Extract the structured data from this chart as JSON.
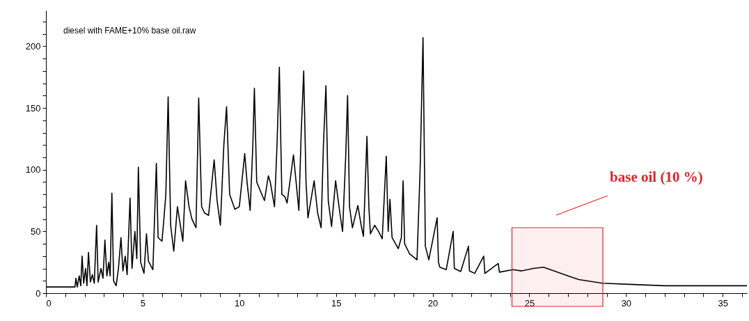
{
  "chart_data": {
    "type": "line",
    "title": "diesel with FAME+10% base oil.raw",
    "bands": [
      {
        "axis": "x",
        "from": 24.1,
        "to": 28.8,
        "label": "base oil (10 %)",
        "color": "#e8202a"
      }
    ],
    "xlim": [
      0,
      36.25
    ],
    "ylim": [
      0,
      229
    ],
    "xticks": [
      0,
      {
        "value": 1,
        "label": null
      },
      {
        "value": 2,
        "label": null
      },
      {
        "value": 3,
        "label": null
      },
      {
        "value": 4,
        "label": null
      },
      5,
      {
        "value": 6,
        "label": null
      },
      {
        "value": 7,
        "label": null
      },
      {
        "value": 8,
        "label": null
      },
      {
        "value": 9,
        "label": null
      },
      10,
      {
        "value": 11,
        "label": null
      },
      {
        "value": 12,
        "label": null
      },
      {
        "value": 13,
        "label": null
      },
      {
        "value": 14,
        "label": null
      },
      15,
      {
        "value": 16,
        "label": null
      },
      {
        "value": 17,
        "label": null
      },
      {
        "value": 18,
        "label": null
      },
      {
        "value": 19,
        "label": null
      },
      20,
      {
        "value": 21,
        "label": null
      },
      {
        "value": 22,
        "label": null
      },
      {
        "value": 23,
        "label": null
      },
      {
        "value": 24,
        "label": null
      },
      25,
      {
        "value": 26,
        "label": null
      },
      {
        "value": 27,
        "label": null
      },
      {
        "value": 28,
        "label": null
      },
      {
        "value": 29,
        "label": null
      },
      30,
      {
        "value": 31,
        "label": null
      },
      {
        "value": 32,
        "label": null
      },
      {
        "value": 33,
        "label": null
      },
      {
        "value": 34,
        "label": null
      },
      35,
      {
        "value": 36,
        "label": null
      }
    ],
    "yticks": [
      0,
      {
        "value": 10,
        "label": null
      },
      {
        "value": 20,
        "label": null
      },
      {
        "value": 30,
        "label": null
      },
      {
        "value": 40,
        "label": null
      },
      50,
      {
        "value": 60,
        "label": null
      },
      {
        "value": 70,
        "label": null
      },
      {
        "value": 80,
        "label": null
      },
      {
        "value": 90,
        "label": null
      },
      100,
      {
        "value": 110,
        "label": null
      },
      {
        "value": 120,
        "label": null
      },
      {
        "value": 130,
        "label": null
      },
      {
        "value": 140,
        "label": null
      },
      150,
      {
        "value": 160,
        "label": null
      },
      {
        "value": 170,
        "label": null
      },
      {
        "value": 180,
        "label": null
      },
      {
        "value": 190,
        "label": null
      },
      200,
      {
        "value": 210,
        "label": null
      },
      {
        "value": 220,
        "label": null
      }
    ],
    "series": [
      {
        "color": "#000000",
        "x": [
          0,
          1.5,
          1.55,
          1.62,
          1.72,
          1.8,
          1.87,
          1.95,
          2.05,
          2.12,
          2.2,
          2.3,
          2.4,
          2.5,
          2.62,
          2.7,
          2.85,
          2.95,
          3.05,
          3.15,
          3.25,
          3.32,
          3.41,
          3.5,
          3.63,
          3.75,
          3.88,
          3.98,
          4.1,
          4.2,
          4.35,
          4.45,
          4.6,
          4.7,
          4.78,
          4.9,
          5.07,
          5.2,
          5.3,
          5.53,
          5.71,
          5.8,
          6.0,
          6.1,
          6.2,
          6.32,
          6.45,
          6.61,
          6.8,
          6.95,
          7.08,
          7.22,
          7.4,
          7.55,
          7.76,
          7.9,
          8.05,
          8.2,
          8.41,
          8.7,
          8.85,
          9.02,
          9.2,
          9.34,
          9.5,
          9.77,
          10.0,
          10.28,
          10.4,
          10.56,
          10.7,
          10.78,
          10.9,
          11.03,
          11.3,
          11.5,
          11.6,
          11.82,
          11.95,
          12.07,
          12.2,
          12.36,
          12.47,
          12.8,
          13.08,
          13.2,
          13.33,
          13.45,
          13.55,
          13.87,
          14.05,
          14.23,
          14.35,
          14.48,
          14.6,
          14.77,
          14.98,
          15.2,
          15.34,
          15.5,
          15.6,
          15.7,
          15.85,
          16.13,
          16.3,
          16.42,
          16.6,
          16.7,
          16.78,
          17.0,
          17.2,
          17.39,
          17.6,
          17.7,
          17.79,
          17.9,
          18.22,
          18.38,
          18.47,
          18.55,
          18.8,
          19.19,
          19.35,
          19.5,
          19.6,
          19.62,
          19.8,
          20.23,
          20.3,
          20.37,
          20.7,
          21.06,
          21.12,
          21.45,
          21.85,
          21.9,
          22.17,
          22.64,
          22.7,
          23.39,
          23.45,
          24.15,
          24.6,
          25.2,
          25.73,
          26.37,
          27.0,
          27.56,
          28.78,
          30.43,
          32,
          36.25
        ],
        "values": [
          5,
          5,
          12,
          5,
          14,
          6,
          30,
          8,
          20,
          6,
          33,
          9,
          15,
          8,
          55,
          9,
          20,
          12,
          43,
          14,
          25,
          14,
          81,
          10,
          6,
          20,
          45,
          18,
          30,
          15,
          77,
          20,
          50,
          28,
          102,
          25,
          16,
          48,
          26,
          19,
          105,
          45,
          42,
          60,
          80,
          159,
          55,
          34,
          70,
          55,
          42,
          91,
          70,
          60,
          53,
          158,
          70,
          65,
          63,
          108,
          75,
          55,
          120,
          151,
          80,
          68,
          70,
          113,
          90,
          67,
          120,
          166,
          90,
          85,
          75,
          95,
          90,
          70,
          120,
          183,
          80,
          78,
          73,
          112,
          67,
          130,
          180,
          90,
          61,
          91,
          65,
          53,
          120,
          168,
          75,
          54,
          91,
          65,
          50,
          110,
          160,
          70,
          53,
          71,
          55,
          46,
          127,
          70,
          48,
          55,
          50,
          44,
          111,
          50,
          76,
          45,
          36,
          45,
          91,
          40,
          32,
          27,
          100,
          207,
          70,
          38,
          27,
          61,
          25,
          21,
          19,
          50,
          20,
          17.5,
          38,
          18,
          16,
          30,
          16,
          24,
          17,
          19,
          18,
          20,
          21,
          17.5,
          14,
          11,
          8,
          7,
          6,
          6
        ]
      }
    ]
  }
}
